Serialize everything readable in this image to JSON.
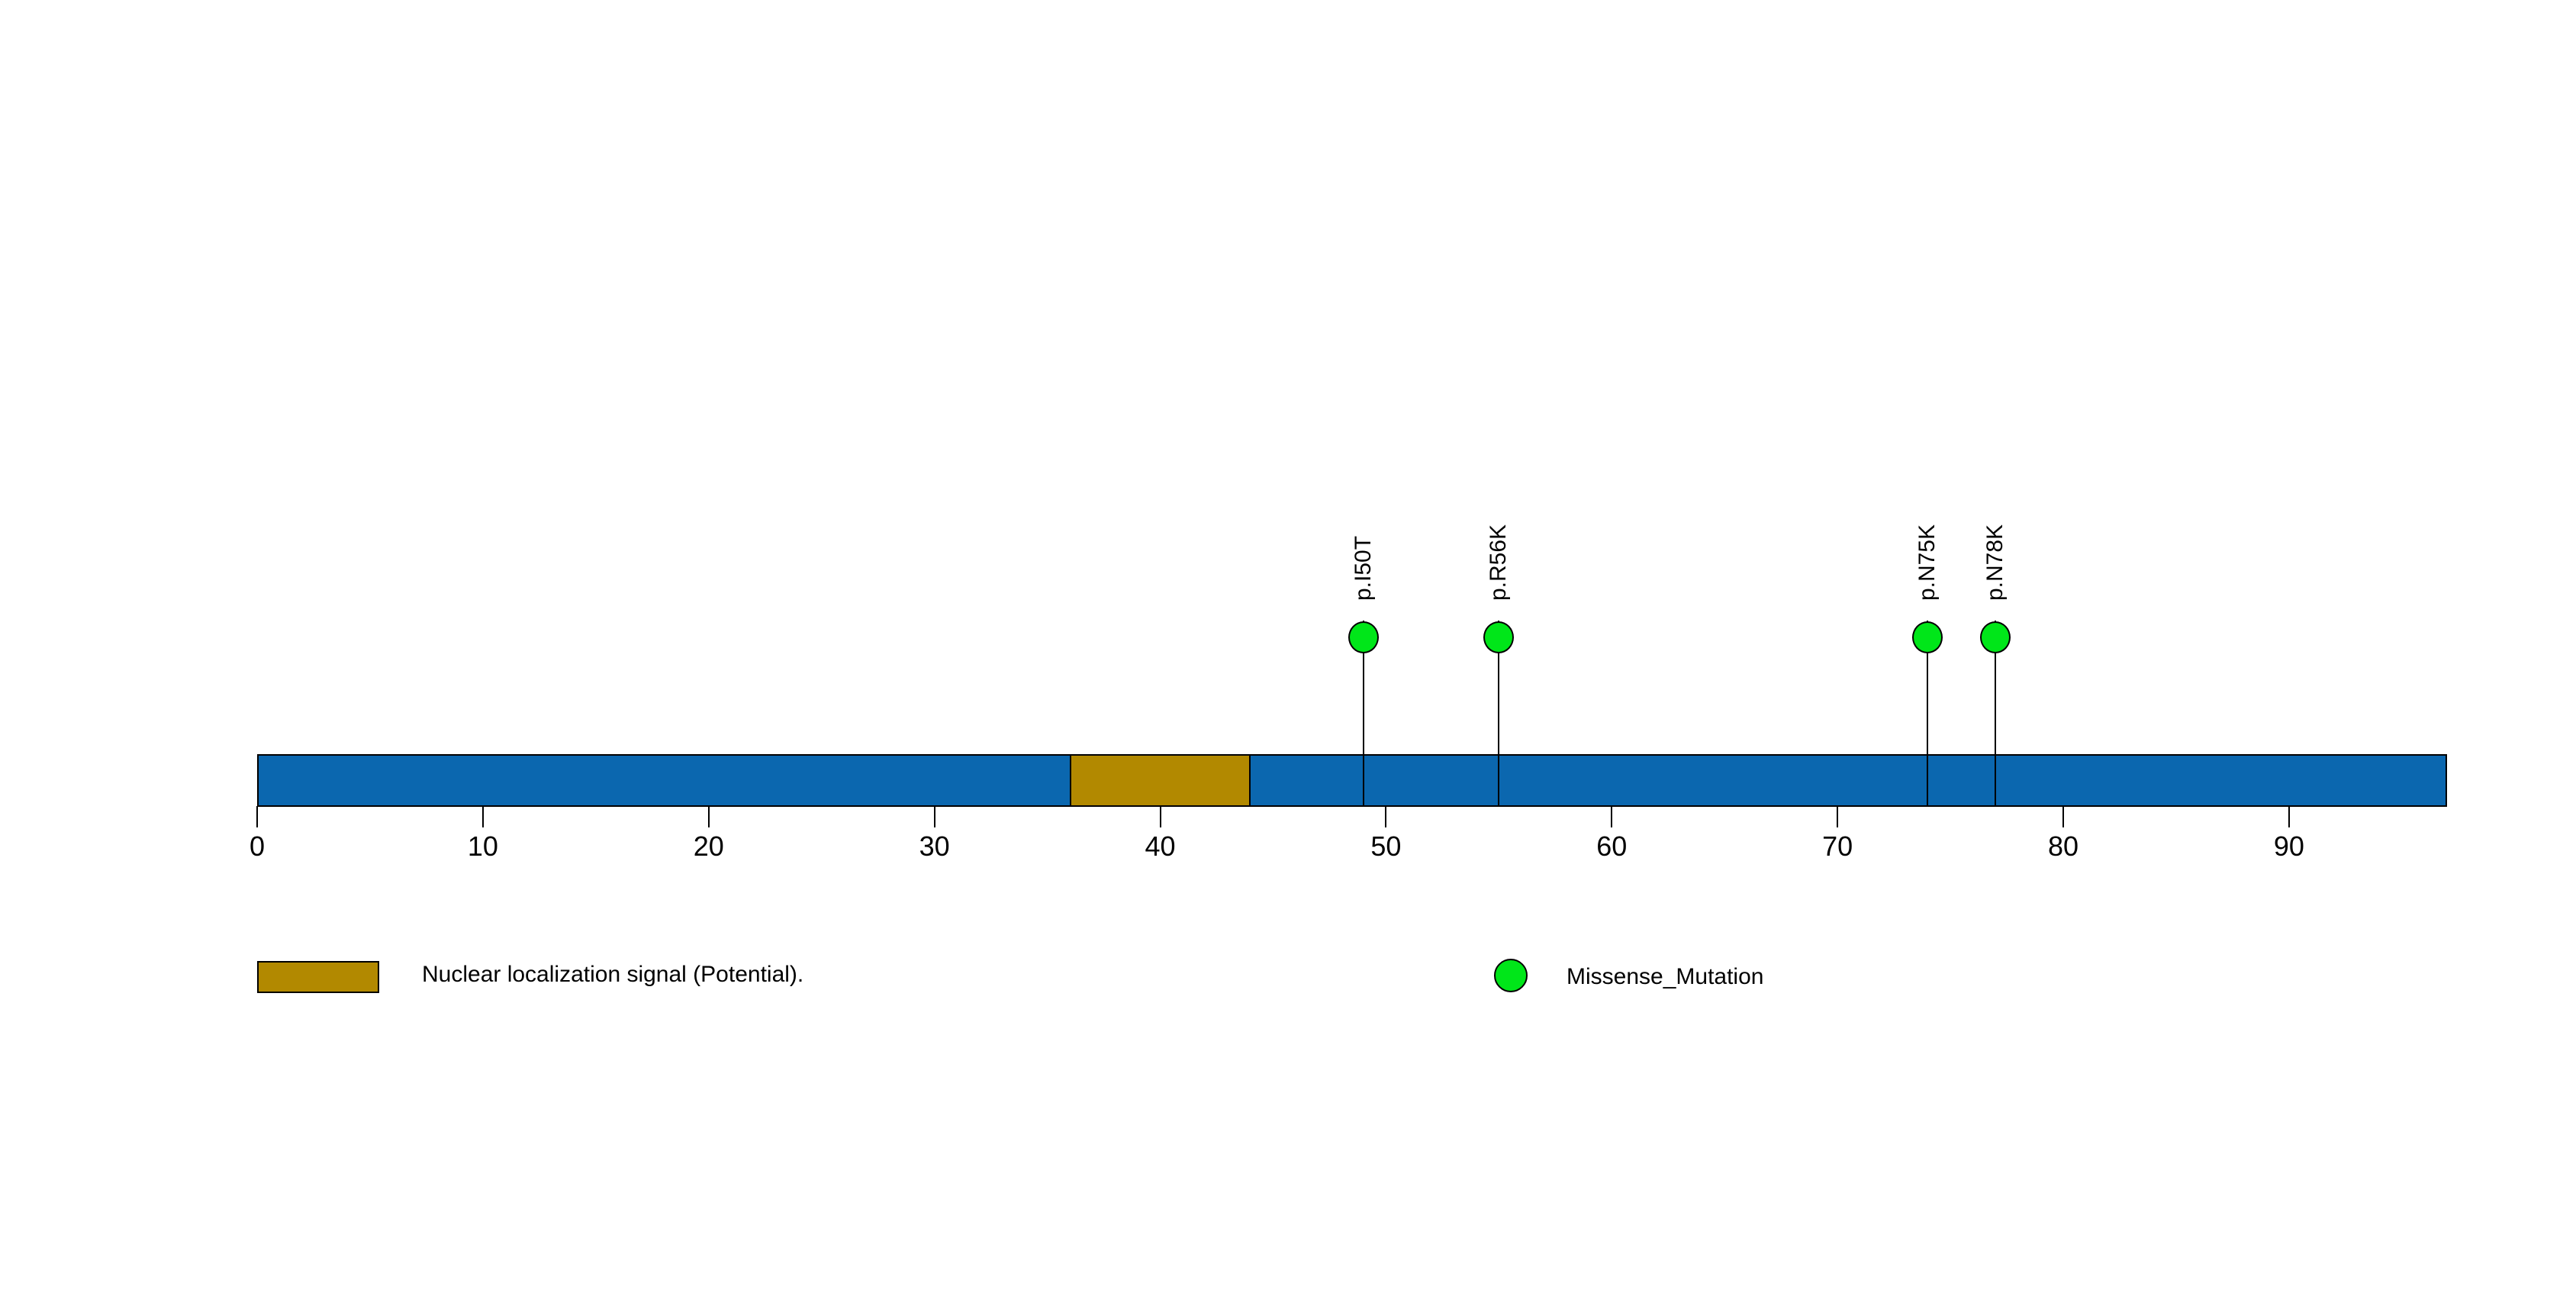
{
  "chart_data": {
    "type": "lollipop",
    "title": "",
    "protein_length": 97,
    "axis": {
      "tick_labels": [
        "0",
        "10",
        "20",
        "30",
        "40",
        "50",
        "60",
        "70",
        "80",
        "90"
      ],
      "tick_values": [
        0,
        10,
        20,
        30,
        40,
        50,
        60,
        70,
        80,
        90
      ],
      "range": [
        0,
        97
      ],
      "grid": false
    },
    "backbone_color": "#0b67af",
    "outline_color": "#000000",
    "domains": [
      {
        "label": "Nuclear localization signal (Potential).",
        "start": 36,
        "end": 44,
        "color": "#b28900"
      }
    ],
    "mutations": [
      {
        "label": "p.I50T",
        "position": 50,
        "type": "Missense_Mutation",
        "color": "#00e619"
      },
      {
        "label": "p.R56K",
        "position": 56,
        "type": "Missense_Mutation",
        "color": "#00e619"
      },
      {
        "label": "p.N75K",
        "position": 75,
        "type": "Missense_Mutation",
        "color": "#00e619"
      },
      {
        "label": "p.N78K",
        "position": 78,
        "type": "Missense_Mutation",
        "color": "#00e619"
      }
    ],
    "legend": [
      {
        "shape": "rect",
        "color": "#b28900",
        "label": "Nuclear localization signal (Potential)."
      },
      {
        "shape": "circle",
        "color": "#00e619",
        "label": "Missense_Mutation"
      }
    ],
    "legend_position": "bottom"
  }
}
